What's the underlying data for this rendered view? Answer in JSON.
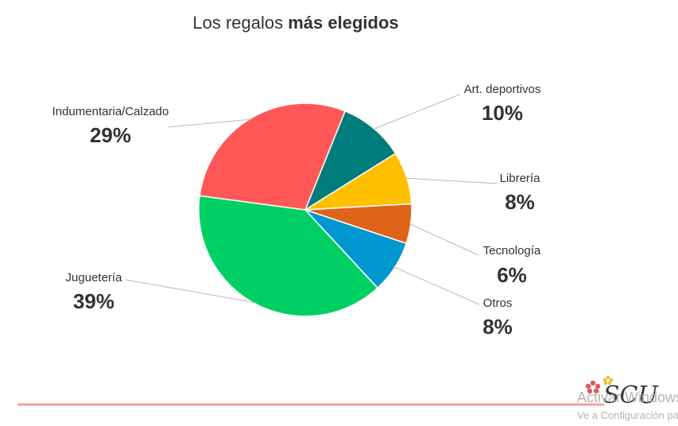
{
  "chart_data": {
    "type": "pie",
    "title_regular": "Los regalos ",
    "title_bold": "más elegidos",
    "slices": [
      {
        "label": "Art. deportivos",
        "value": 10,
        "value_label": "10%",
        "color": "#007c7c"
      },
      {
        "label": "Librería",
        "value": 8,
        "value_label": "8%",
        "color": "#ffc000"
      },
      {
        "label": "Tecnología",
        "value": 6,
        "value_label": "6%",
        "color": "#e0631a"
      },
      {
        "label": "Otros",
        "value": 8,
        "value_label": "8%",
        "color": "#0096d0"
      },
      {
        "label": "Juguetería",
        "value": 39,
        "value_label": "39%",
        "color": "#00d064"
      },
      {
        "label": "Indumentaria/Calzado",
        "value": 29,
        "value_label": "29%",
        "color": "#ff5757"
      }
    ]
  },
  "footer": {
    "divider_color": "#f2a0a0",
    "logo_text": "SCU",
    "watermark_line1": "Activar Windows",
    "watermark_line2": "Ve a Configuración para activar Windows."
  }
}
